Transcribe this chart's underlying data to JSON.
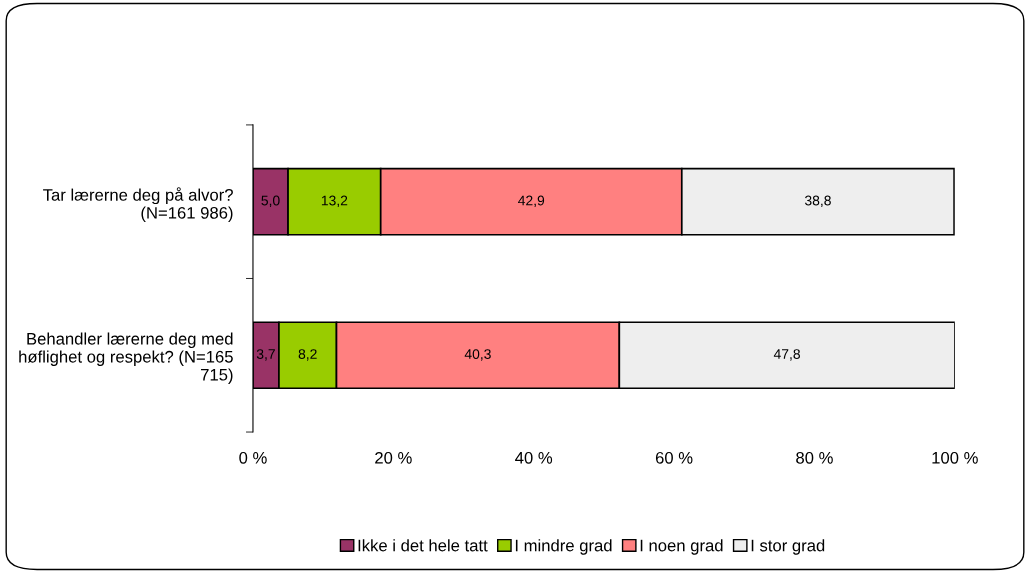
{
  "chart_data": {
    "type": "bar",
    "orientation": "horizontal",
    "stacked": true,
    "categories": [
      "Tar lærerne deg på alvor? (N=161 986)",
      "Behandler lærerne deg med høflighet og respekt? (N=165 715)"
    ],
    "series": [
      {
        "name": "Ikke i det hele tatt",
        "color": "#993366",
        "values": [
          5.0,
          3.7
        ],
        "value_labels": [
          "5,0",
          "3,7"
        ]
      },
      {
        "name": "I mindre grad",
        "color": "#99cc00",
        "values": [
          13.2,
          8.2
        ],
        "value_labels": [
          "13,2",
          "8,2"
        ]
      },
      {
        "name": "I noen grad",
        "color": "#ff8080",
        "values": [
          42.9,
          40.3
        ],
        "value_labels": [
          "42,9",
          "40,3"
        ]
      },
      {
        "name": "I stor grad",
        "color": "#eeeeee",
        "values": [
          38.8,
          47.8
        ],
        "value_labels": [
          "38,8",
          "47,8"
        ]
      }
    ],
    "xlim": [
      0,
      100
    ],
    "xticks": [
      {
        "value": 0,
        "label": "0 %"
      },
      {
        "value": 20,
        "label": "20 %"
      },
      {
        "value": 40,
        "label": "40 %"
      },
      {
        "value": 60,
        "label": "60 %"
      },
      {
        "value": 80,
        "label": "80 %"
      },
      {
        "value": 100,
        "label": "100 %"
      }
    ],
    "grid": false,
    "legend": "bottom"
  }
}
